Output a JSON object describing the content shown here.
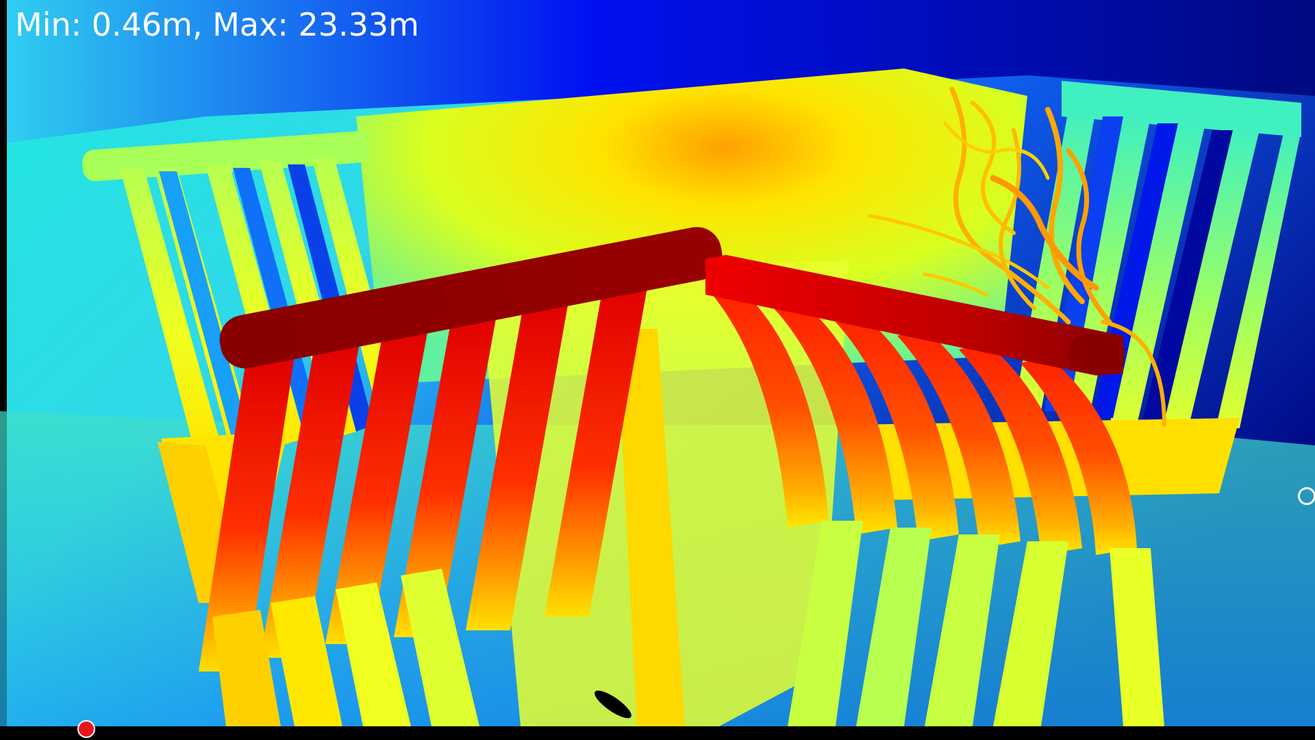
{
  "overlay": {
    "range_text": "Min: 0.46m, Max: 23.33m",
    "text_color": "#ffffff"
  },
  "scene": {
    "colormap": "jet",
    "objects": [
      "table",
      "bench-left",
      "bench-right",
      "chair-left",
      "chair-right",
      "plant"
    ]
  },
  "markers": {
    "red_dot_color": "#e8141e",
    "outline_dot_color": "#ffffff"
  }
}
